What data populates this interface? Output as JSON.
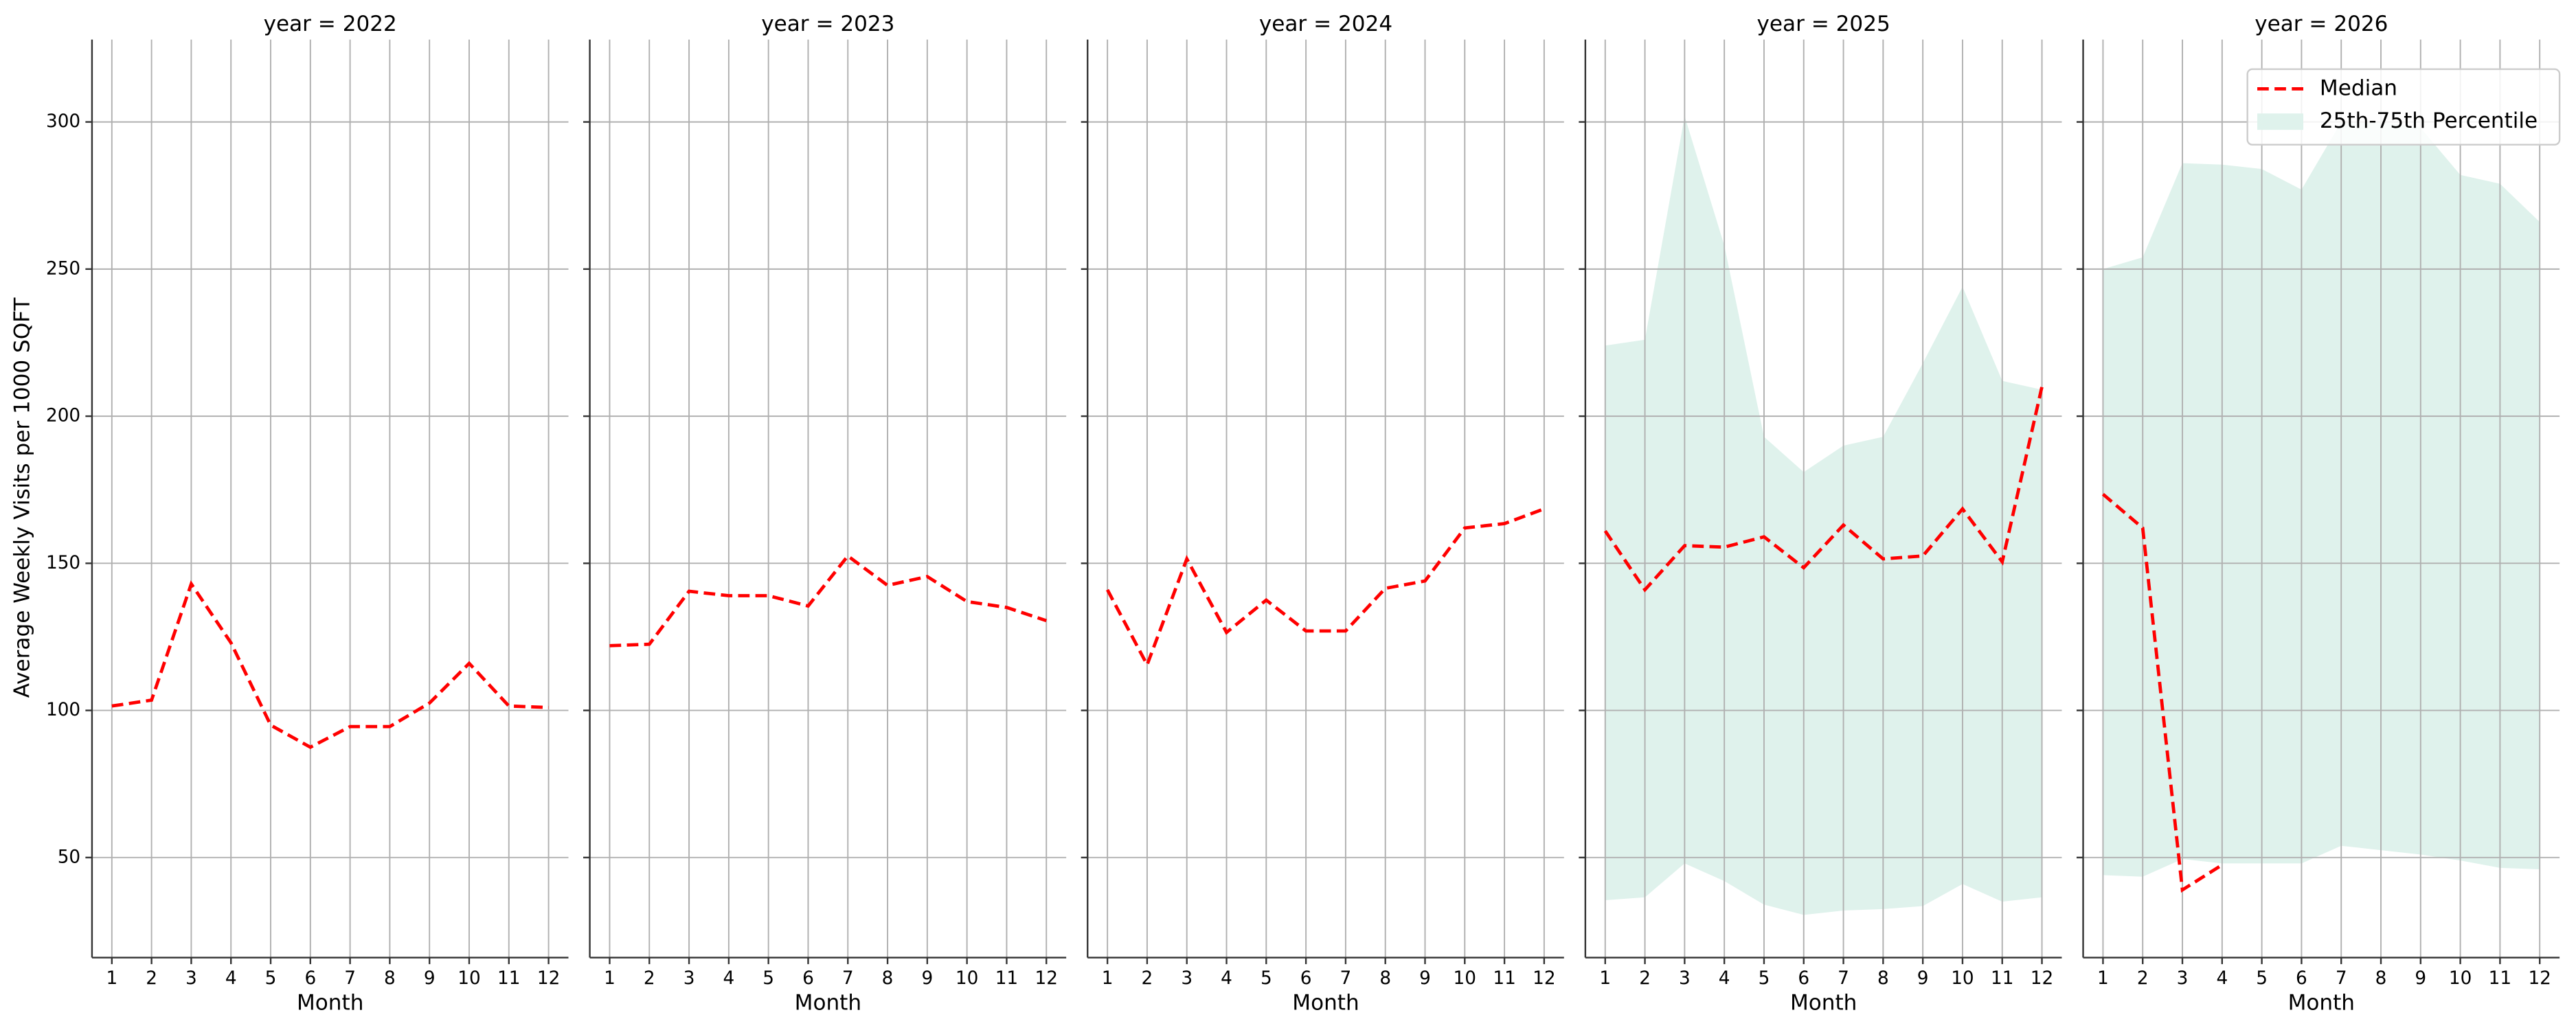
{
  "chart_data": [
    {
      "type": "line",
      "title": "year = 2022",
      "xlabel": "Month",
      "ylabel": "Average Weekly Visits per 1000 SQFT",
      "x": [
        1,
        2,
        3,
        4,
        5,
        6,
        7,
        8,
        9,
        10,
        11,
        12
      ],
      "xlim": [
        0.5,
        12.5
      ],
      "xticks": [
        1,
        2,
        3,
        4,
        5,
        6,
        7,
        8,
        9,
        10,
        11,
        12
      ],
      "ylim": [
        16,
        328
      ],
      "yticks": [
        50,
        100,
        150,
        200,
        250,
        300
      ],
      "grid": true,
      "series": [
        {
          "name": "Median",
          "color": "#ff0000",
          "values": [
            101.5,
            103.5,
            143,
            123,
            95,
            87.5,
            94.5,
            94.5,
            102.5,
            116,
            101.5,
            101
          ]
        }
      ]
    },
    {
      "type": "line",
      "title": "year = 2023",
      "xlabel": "Month",
      "x": [
        1,
        2,
        3,
        4,
        5,
        6,
        7,
        8,
        9,
        10,
        11,
        12
      ],
      "xlim": [
        0.5,
        12.5
      ],
      "xticks": [
        1,
        2,
        3,
        4,
        5,
        6,
        7,
        8,
        9,
        10,
        11,
        12
      ],
      "ylim": [
        16,
        328
      ],
      "yticks": [
        50,
        100,
        150,
        200,
        250,
        300
      ],
      "grid": true,
      "series": [
        {
          "name": "Median",
          "color": "#ff0000",
          "values": [
            122,
            122.5,
            140.5,
            139,
            139,
            135.5,
            152.5,
            142.5,
            145.5,
            137,
            135,
            130.5
          ]
        }
      ]
    },
    {
      "type": "line",
      "title": "year = 2024",
      "xlabel": "Month",
      "x": [
        1,
        2,
        3,
        4,
        5,
        6,
        7,
        8,
        9,
        10,
        11,
        12
      ],
      "xlim": [
        0.5,
        12.5
      ],
      "xticks": [
        1,
        2,
        3,
        4,
        5,
        6,
        7,
        8,
        9,
        10,
        11,
        12
      ],
      "ylim": [
        16,
        328
      ],
      "yticks": [
        50,
        100,
        150,
        200,
        250,
        300
      ],
      "grid": true,
      "series": [
        {
          "name": "Median",
          "color": "#ff0000",
          "values": [
            141,
            115.5,
            151.5,
            126.5,
            137.5,
            127,
            127,
            141.5,
            144,
            162,
            163.5,
            168.5
          ]
        }
      ]
    },
    {
      "type": "line",
      "title": "year = 2025",
      "xlabel": "Month",
      "x": [
        1,
        2,
        3,
        4,
        5,
        6,
        7,
        8,
        9,
        10,
        11,
        12
      ],
      "xlim": [
        0.5,
        12.5
      ],
      "xticks": [
        1,
        2,
        3,
        4,
        5,
        6,
        7,
        8,
        9,
        10,
        11,
        12
      ],
      "ylim": [
        16,
        328
      ],
      "yticks": [
        50,
        100,
        150,
        200,
        250,
        300
      ],
      "grid": true,
      "series": [
        {
          "name": "Median",
          "color": "#ff0000",
          "values": [
            161,
            141,
            156,
            155.5,
            159,
            148.5,
            163,
            151.5,
            152.5,
            168.5,
            150.5,
            210
          ]
        }
      ],
      "band": {
        "name": "25th-75th Percentile",
        "color": "#dff2ec",
        "lower": [
          35.5,
          36.5,
          48,
          42,
          34,
          30.5,
          32,
          32.5,
          33.5,
          41,
          35,
          36.5
        ],
        "upper": [
          224,
          226,
          302,
          258,
          193,
          181,
          190,
          193,
          218,
          244,
          212,
          209
        ]
      }
    },
    {
      "type": "line",
      "title": "year = 2026",
      "xlabel": "Month",
      "x": [
        1,
        2,
        3,
        4,
        5,
        6,
        7,
        8,
        9,
        10,
        11,
        12
      ],
      "xlim": [
        0.5,
        12.5
      ],
      "xticks": [
        1,
        2,
        3,
        4,
        5,
        6,
        7,
        8,
        9,
        10,
        11,
        12
      ],
      "ylim": [
        16,
        328
      ],
      "yticks": [
        50,
        100,
        150,
        200,
        250,
        300
      ],
      "grid": true,
      "legend": "upper right",
      "series": [
        {
          "name": "Median",
          "color": "#ff0000",
          "values": [
            173.5,
            162,
            39,
            47.5,
            null,
            null,
            null,
            null,
            null,
            null,
            null,
            null
          ]
        }
      ],
      "band": {
        "name": "25th-75th Percentile",
        "color": "#dff2ec",
        "lower": [
          44,
          43.5,
          49.5,
          48,
          48,
          48,
          54,
          52.5,
          51,
          49,
          46.5,
          46
        ],
        "upper": [
          250,
          254,
          286,
          285.5,
          284,
          277,
          300,
          300,
          298,
          282,
          279,
          266
        ]
      }
    }
  ]
}
